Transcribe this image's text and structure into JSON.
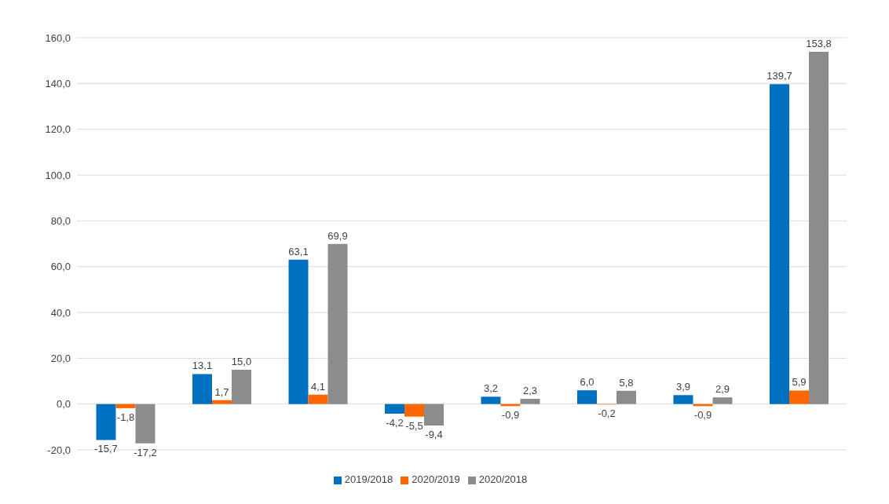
{
  "chart_data": {
    "type": "bar",
    "categories": [
      null,
      null,
      null,
      null,
      null,
      null,
      null,
      null
    ],
    "series": [
      {
        "name": "2019/2018",
        "color": "#0070c0",
        "values": [
          -15.7,
          13.1,
          63.1,
          -4.2,
          3.2,
          6.0,
          3.9,
          139.7
        ],
        "value_labels": [
          "-15,7",
          "13,1",
          "63,1",
          "-4,2",
          "3,2",
          "6,0",
          "3,9",
          "139,7"
        ]
      },
      {
        "name": "2020/2019",
        "color": "#ff6600",
        "values": [
          -1.8,
          1.7,
          4.1,
          -5.5,
          -0.9,
          -0.2,
          -0.9,
          5.9
        ],
        "value_labels": [
          "-1,8",
          "1,7",
          "4,1",
          "-5,5",
          "-0,9",
          "-0,2",
          "-0,9",
          "5,9"
        ]
      },
      {
        "name": "2020/2018",
        "color": "#8c8c8c",
        "values": [
          -17.2,
          15.0,
          69.9,
          -9.4,
          2.3,
          5.8,
          2.9,
          153.8
        ],
        "value_labels": [
          "-17,2",
          "15,0",
          "69,9",
          "-9,4",
          "2,3",
          "5,8",
          "2,9",
          "153,8"
        ]
      }
    ],
    "ylim": [
      -20,
      160
    ],
    "yticks": [
      {
        "value": -20,
        "label": "-20,0"
      },
      {
        "value": 0,
        "label": "0,0"
      },
      {
        "value": 20,
        "label": "20,0"
      },
      {
        "value": 40,
        "label": "40,0"
      },
      {
        "value": 60,
        "label": "60,0"
      },
      {
        "value": 80,
        "label": "80,0"
      },
      {
        "value": 100,
        "label": "100,0"
      },
      {
        "value": 120,
        "label": "120,0"
      },
      {
        "value": 140,
        "label": "140,0"
      },
      {
        "value": 160,
        "label": "160,0"
      }
    ],
    "grid": "y",
    "legend": "bottom"
  }
}
